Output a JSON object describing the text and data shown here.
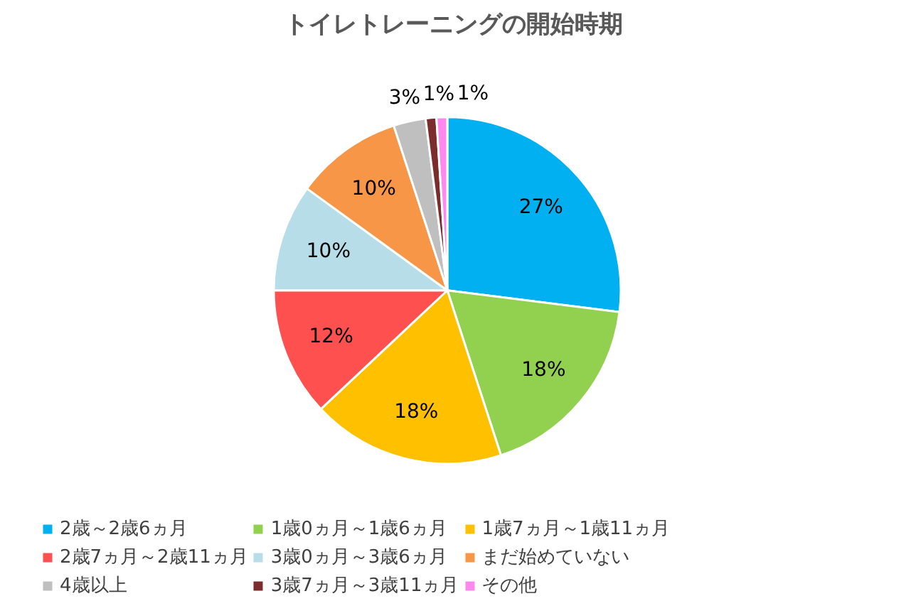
{
  "chart_data": {
    "type": "pie",
    "title": "トイレトレーニングの開始時期",
    "categories": [
      "2歳～2歳6ヵ月",
      "1歳0ヵ月～1歳6ヵ月",
      "1歳7ヵ月～1歳11ヵ月",
      "2歳7ヵ月～2歳11ヵ月",
      "3歳0ヵ月～3歳6ヵ月",
      "まだ始めていない",
      "4歳以上",
      "3歳7ヵ月～3歳11ヵ月",
      "その他"
    ],
    "values": [
      27,
      18,
      18,
      12,
      10,
      10,
      3,
      1,
      1
    ],
    "colors": [
      "#00b0f0",
      "#92d050",
      "#ffc000",
      "#ff5050",
      "#b7dee8",
      "#f79646",
      "#bfbfbf",
      "#7b2c2c",
      "#ff88ee"
    ],
    "value_labels": [
      "27%",
      "18%",
      "18%",
      "12%",
      "10%",
      "10%",
      "3%",
      "1%",
      "1%"
    ],
    "legend": "bottom"
  }
}
